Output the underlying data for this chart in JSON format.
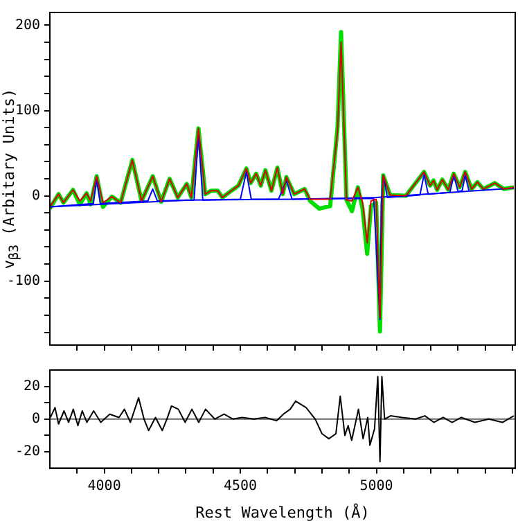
{
  "chart_data": [
    {
      "type": "line",
      "ylabel": "v$_{β3}$ (Arbitary Units)",
      "xlim": [
        3800,
        5510
      ],
      "ylim": [
        -175,
        215
      ],
      "tick_labels": "y",
      "grid": false,
      "xticks": [
        {
          "value": 3900,
          "label": null
        },
        {
          "value": 4000,
          "label": null
        },
        {
          "value": 4100,
          "label": null
        },
        {
          "value": 4200,
          "label": null
        },
        {
          "value": 4300,
          "label": null
        },
        {
          "value": 4400,
          "label": null
        },
        {
          "value": 4500,
          "label": null
        },
        {
          "value": 4600,
          "label": null
        },
        {
          "value": 4700,
          "label": null
        },
        {
          "value": 4800,
          "label": null
        },
        {
          "value": 4900,
          "label": null
        },
        {
          "value": 5000,
          "label": null
        },
        {
          "value": 5100,
          "label": null
        },
        {
          "value": 5200,
          "label": null
        },
        {
          "value": 5300,
          "label": null
        },
        {
          "value": 5400,
          "label": null
        },
        {
          "value": 5500,
          "label": null
        }
      ],
      "yticks": [
        {
          "value": -160,
          "label": null
        },
        {
          "value": -140,
          "label": null
        },
        {
          "value": -120,
          "label": null
        },
        -100,
        {
          "value": -80,
          "label": null
        },
        {
          "value": -60,
          "label": null
        },
        {
          "value": -40,
          "label": null
        },
        {
          "value": -20,
          "label": null
        },
        0,
        {
          "value": 20,
          "label": null
        },
        {
          "value": 40,
          "label": null
        },
        {
          "value": 60,
          "label": null
        },
        {
          "value": 80,
          "label": null
        },
        100,
        {
          "value": 120,
          "label": null
        },
        {
          "value": 140,
          "label": null
        },
        {
          "value": 160,
          "label": null
        },
        {
          "value": 180,
          "label": null
        },
        200
      ],
      "series": [
        {
          "color": "#00dd00",
          "x": [
            3800,
            3832,
            3850,
            3885,
            3910,
            3935,
            3950,
            3972,
            3995,
            4028,
            4060,
            4103,
            4137,
            4178,
            4209,
            4240,
            4270,
            4303,
            4320,
            4346,
            4371,
            4393,
            4417,
            4434,
            4467,
            4493,
            4522,
            4538,
            4558,
            4575,
            4592,
            4614,
            4636,
            4656,
            4669,
            4698,
            4736,
            4756,
            4790,
            4830,
            4857,
            4870,
            4890,
            4910,
            4932,
            4949,
            4966,
            4980,
            4999,
            5013,
            5025,
            5050,
            5108,
            5175,
            5197,
            5210,
            5223,
            5242,
            5264,
            5284,
            5306,
            5326,
            5350,
            5371,
            5393,
            5435,
            5468,
            5505
          ],
          "values": [
            -15,
            2,
            -8,
            7,
            -10,
            3,
            -10,
            23,
            -13,
            -1,
            -8,
            42,
            -6,
            23,
            -7,
            20,
            -2,
            14,
            -2,
            79,
            2,
            6,
            6,
            -2,
            6,
            12,
            32,
            15,
            26,
            12,
            30,
            6,
            33,
            2,
            22,
            2,
            8,
            -6,
            -15,
            -12,
            80,
            192,
            -5,
            -18,
            10,
            -15,
            -68,
            -12,
            -8,
            -159,
            24,
            1,
            0,
            28,
            12,
            18,
            7,
            19,
            7,
            26,
            10,
            28,
            8,
            16,
            8,
            15,
            8,
            10
          ]
        },
        {
          "color": "#0000ff",
          "x": [
            3800,
            4300,
            4700,
            5000,
            5505
          ],
          "values": [
            -13,
            -5,
            -4,
            -2,
            9
          ]
        },
        {
          "color": "#0000ff",
          "x": [
            3800,
            3960,
            3972,
            3985,
            4160,
            4178,
            4195,
            4330,
            4346,
            4362,
            4500,
            4522,
            4540,
            4640,
            4669,
            4690,
            4990,
            5013,
            5018,
            5025,
            5040,
            5160,
            5175,
            5190,
            5270,
            5284,
            5300,
            5315,
            5326,
            5340
          ],
          "values": [
            -13,
            -9,
            20,
            -9,
            -6,
            8,
            -6,
            -5,
            72,
            -5,
            -4,
            28,
            -4,
            -4,
            18,
            -4,
            -3,
            -145,
            -10,
            24,
            -2,
            1,
            25,
            2,
            4,
            24,
            5,
            6,
            24,
            6
          ]
        },
        {
          "color": "#dd0000",
          "x": [
            3800,
            3832,
            3850,
            3885,
            3910,
            3935,
            3950,
            3972,
            3995,
            4028,
            4060,
            4103,
            4137,
            4178,
            4209,
            4240,
            4270,
            4303,
            4320,
            4346,
            4371,
            4393,
            4417,
            4434,
            4467,
            4493,
            4522,
            4538,
            4558,
            4575,
            4592,
            4614,
            4636,
            4656,
            4669,
            4698,
            4736,
            4756,
            4790,
            4830,
            4857,
            4870,
            4890,
            4910,
            4932,
            4949,
            4966,
            4980,
            4999,
            5013,
            5025,
            5050,
            5108,
            5175,
            5197,
            5210,
            5223,
            5242,
            5264,
            5284,
            5306,
            5326,
            5350,
            5371,
            5393,
            5435,
            5468,
            5505
          ],
          "values": [
            -13,
            2,
            -8,
            7,
            -6,
            3,
            -6,
            23,
            -8,
            -1,
            -8,
            42,
            -6,
            23,
            -7,
            20,
            -2,
            14,
            -2,
            79,
            2,
            6,
            6,
            -2,
            6,
            12,
            32,
            15,
            26,
            12,
            30,
            6,
            33,
            2,
            22,
            2,
            8,
            -4,
            -4,
            -4,
            75,
            180,
            -5,
            -6,
            10,
            -8,
            -55,
            -6,
            -4,
            -143,
            24,
            1,
            0,
            28,
            12,
            18,
            7,
            19,
            7,
            26,
            10,
            28,
            8,
            16,
            8,
            15,
            8,
            10
          ]
        }
      ]
    },
    {
      "type": "line",
      "xlabel": "Rest Wavelength (Å)",
      "xlim": [
        3800,
        5510
      ],
      "ylim": [
        -30,
        30
      ],
      "grid": false,
      "xticks": [
        {
          "value": 3900,
          "label": null
        },
        4000,
        {
          "value": 4100,
          "label": null
        },
        {
          "value": 4200,
          "label": null
        },
        {
          "value": 4300,
          "label": null
        },
        {
          "value": 4400,
          "label": null
        },
        4500,
        {
          "value": 4600,
          "label": null
        },
        {
          "value": 4700,
          "label": null
        },
        {
          "value": 4800,
          "label": null
        },
        {
          "value": 4900,
          "label": null
        },
        5000,
        {
          "value": 5100,
          "label": null
        },
        {
          "value": 5200,
          "label": null
        },
        {
          "value": 5300,
          "label": null
        },
        {
          "value": 5400,
          "label": null
        },
        {
          "value": 5500,
          "label": null
        }
      ],
      "yticks": [
        -20,
        {
          "value": -10,
          "label": null
        },
        0,
        {
          "value": 10,
          "label": null
        },
        20
      ],
      "ref_lines": [
        {
          "axis": "y",
          "value": 0,
          "color": "#888888"
        }
      ],
      "series": [
        {
          "color": "#000000",
          "x": [
            3802,
            3819,
            3832,
            3852,
            3869,
            3886,
            3903,
            3919,
            3936,
            3961,
            3987,
            4020,
            4054,
            4074,
            4096,
            4126,
            4146,
            4163,
            4188,
            4213,
            4230,
            4247,
            4272,
            4297,
            4322,
            4347,
            4372,
            4406,
            4440,
            4473,
            4507,
            4549,
            4591,
            4633,
            4658,
            4683,
            4703,
            4742,
            4775,
            4800,
            4825,
            4851,
            4867,
            4884,
            4896,
            4909,
            4934,
            4951,
            4968,
            4976,
            4993,
            5005,
            5013,
            5020,
            5030,
            5052,
            5094,
            5144,
            5178,
            5211,
            5245,
            5278,
            5312,
            5362,
            5413,
            5463,
            5505
          ],
          "values": [
            1,
            7,
            -3,
            5,
            -2,
            6,
            -4,
            5,
            -2,
            5,
            -2,
            3,
            1,
            6,
            -2,
            13,
            0,
            -7,
            1,
            -7,
            0,
            8,
            6,
            -2,
            6,
            -2,
            6,
            0,
            3,
            0,
            1,
            0,
            1,
            -1,
            3,
            6,
            11,
            7,
            0,
            -9,
            -12,
            -9,
            14,
            -10,
            -4,
            -13,
            6,
            -12,
            1,
            -16,
            -6,
            26,
            -26,
            26,
            0,
            2,
            1,
            0,
            2,
            -2,
            1,
            -2,
            1,
            -2,
            0,
            -2,
            2
          ]
        }
      ]
    }
  ]
}
